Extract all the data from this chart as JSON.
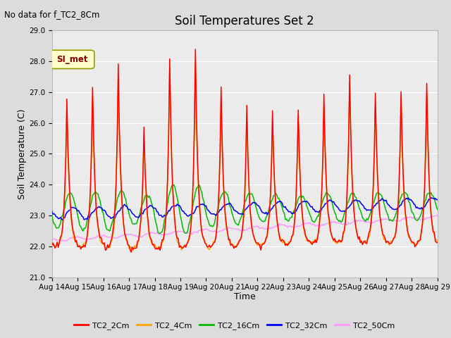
{
  "title": "Soil Temperatures Set 2",
  "subtitle": "No data for f_TC2_8Cm",
  "xlabel": "Time",
  "ylabel": "Soil Temperature (C)",
  "ylim": [
    21.0,
    29.0
  ],
  "yticks": [
    21.0,
    22.0,
    23.0,
    24.0,
    25.0,
    26.0,
    27.0,
    28.0,
    29.0
  ],
  "xlim": [
    0,
    360
  ],
  "xtick_labels": [
    "Aug 14",
    "Aug 15",
    "Aug 16",
    "Aug 17",
    "Aug 18",
    "Aug 19",
    "Aug 20",
    "Aug 21",
    "Aug 22",
    "Aug 23",
    "Aug 24",
    "Aug 25",
    "Aug 26",
    "Aug 27",
    "Aug 28",
    "Aug 29"
  ],
  "xtick_positions": [
    0,
    24,
    48,
    72,
    96,
    120,
    144,
    168,
    192,
    216,
    240,
    264,
    288,
    312,
    336,
    360
  ],
  "bg_color": "#dcdcdc",
  "plot_bg_color": "#ebebeb",
  "legend_label": "SI_met",
  "series_colors": {
    "TC2_2Cm": "#ff0000",
    "TC2_4Cm": "#ffa500",
    "TC2_16Cm": "#00bb00",
    "TC2_32Cm": "#0000ee",
    "TC2_50Cm": "#ff99ff"
  },
  "linewidth": 1.1,
  "grid_color": "#ffffff",
  "title_fontsize": 12,
  "axis_fontsize": 9,
  "tick_fontsize": 7.5
}
